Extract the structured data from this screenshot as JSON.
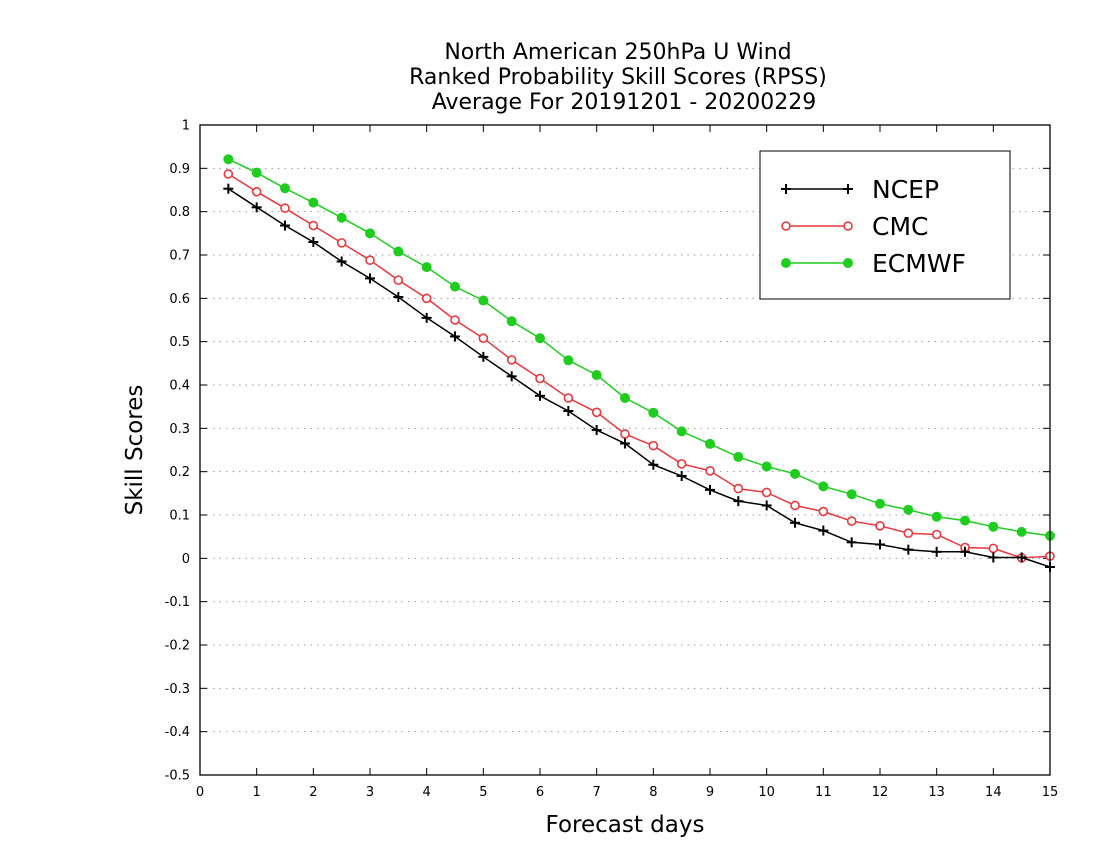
{
  "chart_data": {
    "type": "line",
    "title_lines": [
      "North American 250hPa U Wind",
      "Ranked Probability Skill Scores (RPSS)",
      "Average For 20191201 - 20200229"
    ],
    "xlabel": "Forecast days",
    "ylabel": "Skill Scores",
    "xlim": [
      0,
      15
    ],
    "ylim": [
      -0.5,
      1
    ],
    "x_ticks": [
      "0",
      "1",
      "2",
      "3",
      "4",
      "5",
      "6",
      "7",
      "8",
      "9",
      "10",
      "11",
      "12",
      "13",
      "14",
      "15"
    ],
    "y_ticks": [
      "1",
      "0.9",
      "0.8",
      "0.7",
      "0.6",
      "0.5",
      "0.4",
      "0.3",
      "0.2",
      "0.1",
      "0",
      "-0.1",
      "-0.2",
      "-0.3",
      "-0.4",
      "-0.5"
    ],
    "grid": "horizontal dotted",
    "legend_position": "top-right",
    "x": [
      0.5,
      1,
      1.5,
      2,
      2.5,
      3,
      3.5,
      4,
      4.5,
      5,
      5.5,
      6,
      6.5,
      7,
      7.5,
      8,
      8.5,
      9,
      9.5,
      10,
      10.5,
      11,
      11.5,
      12,
      12.5,
      13,
      13.5,
      14,
      14.5,
      15
    ],
    "series": [
      {
        "name": "NCEP",
        "color": "#000000",
        "marker": "plus",
        "values": [
          0.853,
          0.81,
          0.768,
          0.73,
          0.685,
          0.646,
          0.603,
          0.555,
          0.512,
          0.465,
          0.42,
          0.375,
          0.34,
          0.296,
          0.265,
          0.216,
          0.19,
          0.158,
          0.132,
          0.122,
          0.082,
          0.064,
          0.037,
          0.032,
          0.02,
          0.015,
          0.015,
          0.002,
          0.002,
          -0.02
        ]
      },
      {
        "name": "CMC",
        "color": "#e8383d",
        "marker": "open-circle",
        "values": [
          0.887,
          0.846,
          0.808,
          0.768,
          0.728,
          0.688,
          0.642,
          0.6,
          0.55,
          0.508,
          0.458,
          0.415,
          0.37,
          0.337,
          0.287,
          0.26,
          0.218,
          0.202,
          0.161,
          0.152,
          0.122,
          0.108,
          0.086,
          0.075,
          0.058,
          0.055,
          0.025,
          0.023,
          0.001,
          0.005
        ]
      },
      {
        "name": "ECMWF",
        "color": "#1fcd1f",
        "marker": "filled-circle",
        "values": [
          0.921,
          0.89,
          0.854,
          0.821,
          0.786,
          0.75,
          0.708,
          0.672,
          0.627,
          0.595,
          0.547,
          0.508,
          0.457,
          0.423,
          0.37,
          0.336,
          0.293,
          0.264,
          0.234,
          0.212,
          0.195,
          0.166,
          0.148,
          0.126,
          0.112,
          0.096,
          0.087,
          0.073,
          0.061,
          0.052
        ]
      }
    ]
  }
}
